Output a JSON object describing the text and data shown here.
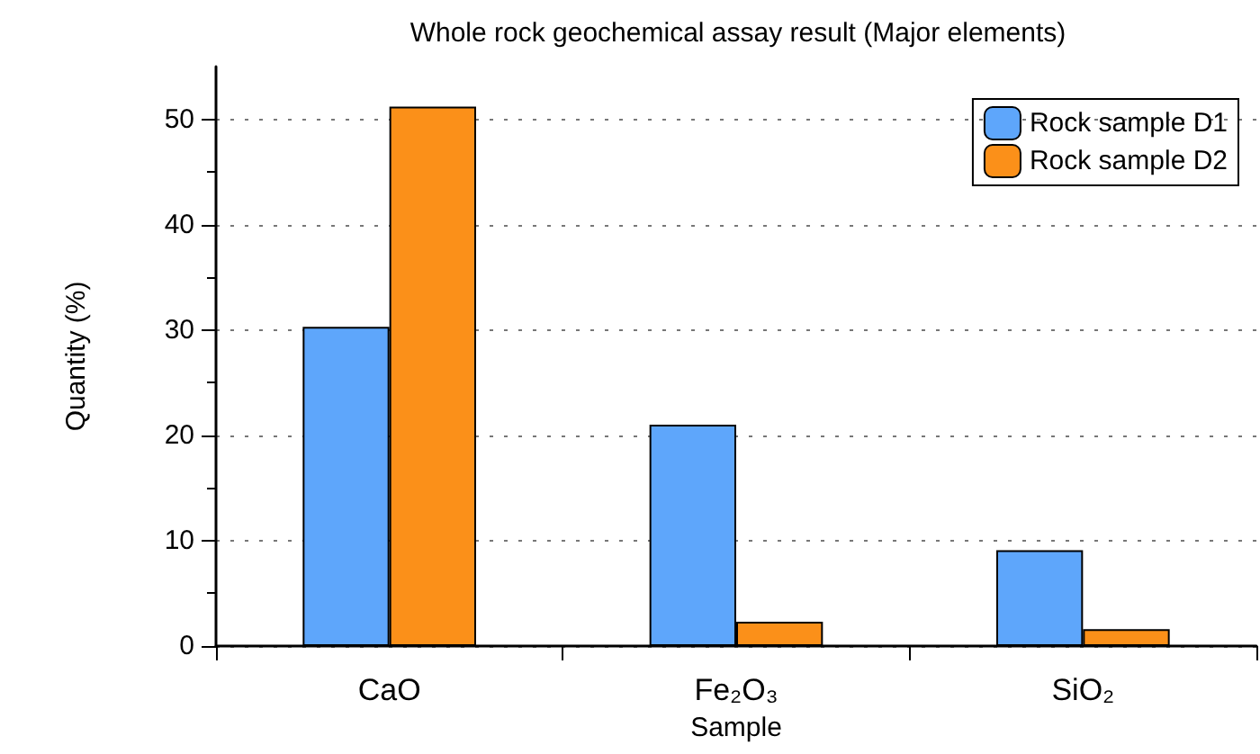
{
  "chart_data": {
    "type": "bar",
    "title": "Whole rock geochemical assay result (Major elements)",
    "xlabel": "Sample",
    "ylabel": "Quantity (%)",
    "categories": [
      "CaO",
      "Fe₂O₃",
      "SiO₂"
    ],
    "series": [
      {
        "name": "Rock sample D1",
        "color": "#5ea6fb",
        "values": [
          30.3,
          21.0,
          9.1
        ]
      },
      {
        "name": "Rock sample D2",
        "color": "#fb9019",
        "values": [
          51.2,
          2.3,
          1.6
        ]
      }
    ],
    "ylim": [
      0,
      55
    ],
    "yticks": [
      0,
      {
        "value": 5,
        "label": null
      },
      10,
      {
        "value": 15,
        "label": null
      },
      20,
      {
        "value": 25,
        "label": null
      },
      30,
      {
        "value": 35,
        "label": null
      },
      40,
      {
        "value": 45,
        "label": null
      },
      50
    ],
    "grid": "y",
    "legend": "top right"
  }
}
